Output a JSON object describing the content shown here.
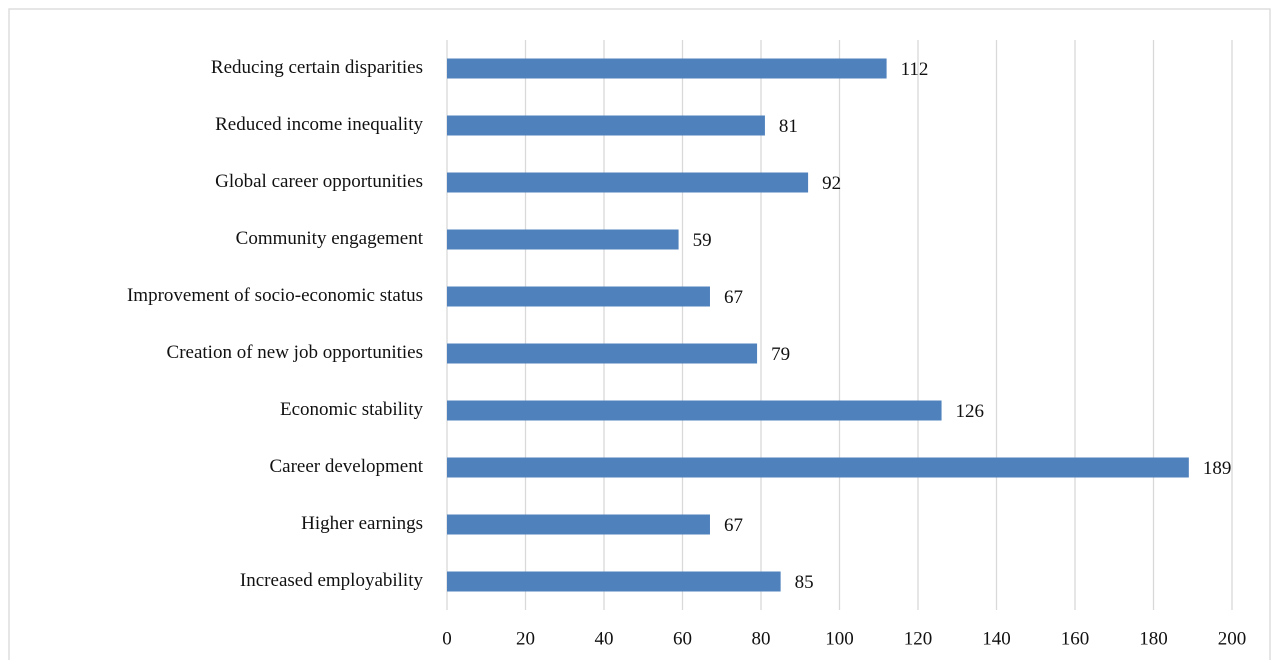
{
  "chart_data": {
    "type": "bar",
    "orientation": "horizontal",
    "categories": [
      "Increased employability",
      "Higher earnings",
      "Career development",
      "Economic stability",
      "Creation of new job opportunities",
      "Improvement of socio-economic status",
      "Community engagement",
      "Global career opportunities",
      "Reduced income inequality",
      "Reducing certain disparities"
    ],
    "values": [
      85,
      67,
      189,
      126,
      79,
      67,
      59,
      92,
      81,
      112
    ],
    "color": "#4f81bd",
    "xlim": [
      0,
      200
    ],
    "xticks": [
      0,
      20,
      40,
      60,
      80,
      100,
      120,
      140,
      160,
      180,
      200
    ],
    "grid": true
  }
}
